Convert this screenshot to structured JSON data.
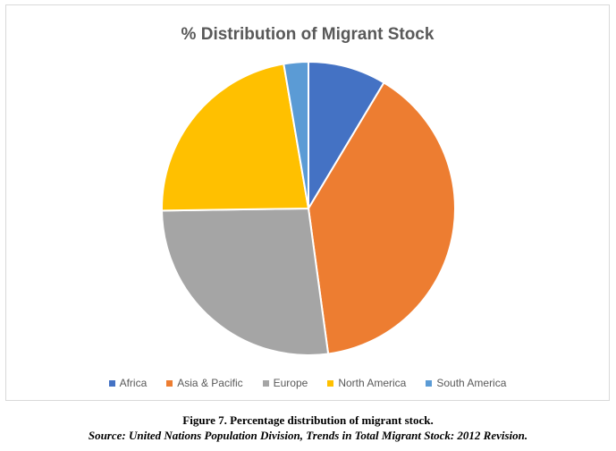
{
  "chart_data": {
    "type": "pie",
    "title": "% Distribution of Migrant Stock",
    "categories": [
      "Africa",
      "Asia & Pacific",
      "Europe",
      "North America",
      "South America"
    ],
    "values": [
      8.6,
      39.2,
      26.9,
      22.5,
      2.7
    ],
    "colors": [
      "#4472c4",
      "#ed7d31",
      "#a5a5a5",
      "#ffc000",
      "#5b9bd5"
    ],
    "legend": "bottom"
  },
  "caption": {
    "title": "Figure 7. Percentage distribution of migrant stock.",
    "source": "Source: United Nations Population Division, Trends in Total Migrant Stock: 2012 Revision."
  }
}
